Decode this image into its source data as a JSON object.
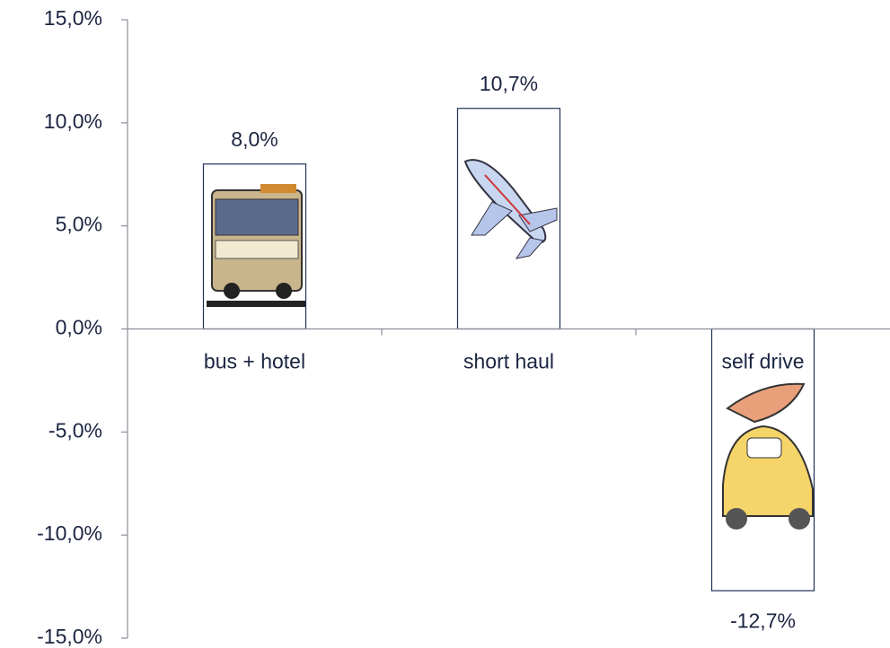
{
  "chart_data": {
    "type": "bar",
    "categories": [
      "bus + hotel",
      "short haul",
      "self drive"
    ],
    "values": [
      8.0,
      10.7,
      -12.7
    ],
    "value_labels": [
      "8,0%",
      "10,7%",
      "-12,7%"
    ],
    "color": "#ffffff",
    "ylim": [
      -15,
      15
    ],
    "yticks": [
      {
        "value": -15,
        "label": "-15,0%"
      },
      {
        "value": -10,
        "label": "-10,0%"
      },
      {
        "value": -5,
        "label": "-5,0%"
      },
      {
        "value": 0,
        "label": "0,0%"
      },
      {
        "value": 5,
        "label": "5,0%"
      },
      {
        "value": 10,
        "label": "10,0%"
      },
      {
        "value": 15,
        "label": "15,0%"
      }
    ],
    "grid": false
  }
}
